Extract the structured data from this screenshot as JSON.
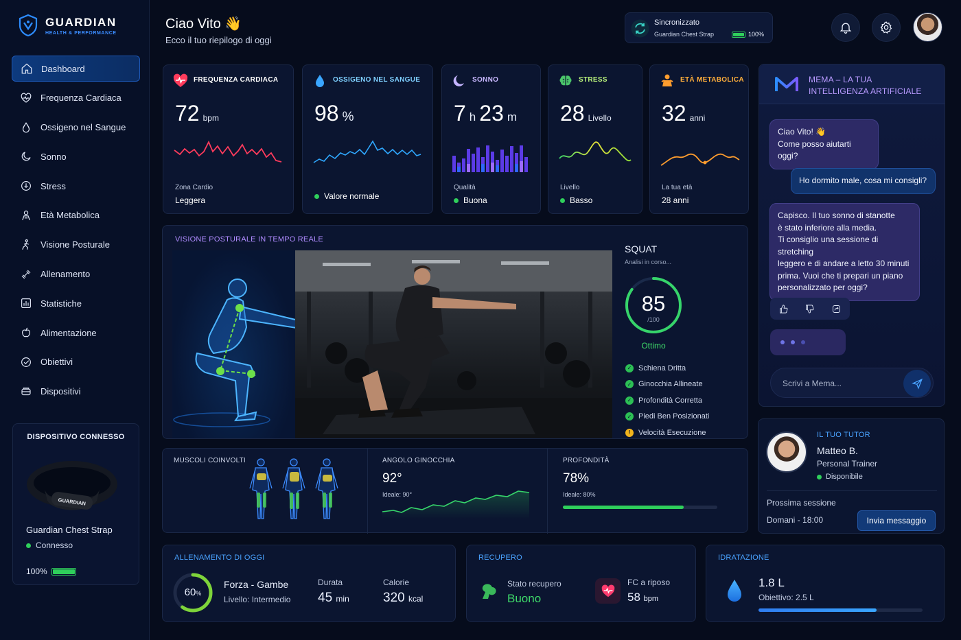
{
  "brand": {
    "name": "GUARDIAN",
    "tagline": "HEALTH & PERFORMANCE"
  },
  "sidebar": {
    "items": [
      {
        "label": "Dashboard",
        "icon": "home-icon",
        "active": true
      },
      {
        "label": "Frequenza Cardiaca",
        "icon": "heart-icon"
      },
      {
        "label": "Ossigeno nel Sangue",
        "icon": "drop-icon"
      },
      {
        "label": "Sonno",
        "icon": "moon-icon"
      },
      {
        "label": "Stress",
        "icon": "stress-icon"
      },
      {
        "label": "Età Metabolica",
        "icon": "person-icon"
      },
      {
        "label": "Visione Posturale",
        "icon": "posture-icon"
      },
      {
        "label": "Allenamento",
        "icon": "dumbbell-icon"
      },
      {
        "label": "Statistiche",
        "icon": "stats-icon"
      },
      {
        "label": "Alimentazione",
        "icon": "apple-icon"
      },
      {
        "label": "Obiettivi",
        "icon": "target-icon"
      },
      {
        "label": "Dispositivi",
        "icon": "device-icon"
      }
    ]
  },
  "device": {
    "title": "DISPOSITIVO CONNESSO",
    "strap_text": "GUARDIAN",
    "name": "Guardian Chest Strap",
    "status": "Connesso",
    "battery": "100%",
    "battery_level": 1.0
  },
  "header": {
    "greeting": "Ciao Vito 👋",
    "subtitle": "Ecco il tuo riepilogo di oggi",
    "sync": {
      "title": "Sincronizzato",
      "device": "Guardian Chest Strap",
      "battery": "100%"
    }
  },
  "metrics": [
    {
      "title": "FREQUENZA CARDIACA",
      "title_color": "#ffffff",
      "value": "72",
      "unit": "bpm",
      "label": "Zona Cardio",
      "sub": "Leggera",
      "color": "#ff3b5c"
    },
    {
      "title": "OSSIGENO NEL SANGUE",
      "title_color": "#7fd0ff",
      "value": "98",
      "unit": "%",
      "label": "",
      "sub": "Valore normale",
      "color": "#2fa8ff"
    },
    {
      "title": "SONNO",
      "title_color": "#c9b8ff",
      "value_h": "7",
      "unit_h": "h",
      "value_m": "23",
      "unit_m": "m",
      "label": "Qualità",
      "sub": "Buona",
      "color": "#6b4bff"
    },
    {
      "title": "STRESS",
      "title_color": "#b7f07a",
      "value": "28",
      "unit": "Livello",
      "label": "Livello",
      "sub": "Basso",
      "color": "#8ee03a"
    },
    {
      "title": "ETÀ METABOLICA",
      "title_color": "#ffae3b",
      "value": "32",
      "unit": "anni",
      "label": "La tua età",
      "sub": "28 anni",
      "color": "#ff9d2e"
    }
  ],
  "posture": {
    "title": "VISIONE POSTURALE IN TEMPO REALE",
    "exercise": "SQUAT",
    "analysis": "Analisi in corso...",
    "score": "85",
    "score_value": 85,
    "score_max": "/100",
    "score_label": "Ottimo",
    "checks": [
      {
        "label": "Schiena Dritta",
        "ok": true
      },
      {
        "label": "Ginocchia Allineate",
        "ok": true
      },
      {
        "label": "Profondità Corretta",
        "ok": true
      },
      {
        "label": "Piedi Ben Posizionati",
        "ok": true
      },
      {
        "label": "Velocità Esecuzione",
        "ok": false
      }
    ]
  },
  "analysis": {
    "muscles_label": "MUSCOLI COINVOLTI",
    "knee_label": "ANGOLO GINOCCHIA",
    "knee_value": "92°",
    "knee_ideal": "Ideale: 90°",
    "depth_label": "PROFONDITÀ",
    "depth_value": "78%",
    "depth_ideal": "Ideale: 80%",
    "depth_level": 0.78
  },
  "assistant": {
    "title_line1": "MEMA – LA TUA",
    "title_line2": "INTELLIGENZA ARTIFICIALE",
    "msg1_line1": "Ciao Vito! 👋",
    "msg1_line2": "Come posso aiutarti oggi?",
    "user_msg": "Ho dormito male, cosa mi consigli?",
    "reply_lines": [
      "Capisco. Il tuo sonno di stanotte",
      "è stato inferiore alla media.",
      "Ti consiglio una sessione di stretching",
      "leggero e di andare a letto 30 minuti",
      "prima. Vuoi che ti prepari un piano",
      "personalizzato per oggi?"
    ],
    "input_placeholder": "Scrivi a Mema..."
  },
  "tutor": {
    "title": "IL TUO TUTOR",
    "name": "Matteo B.",
    "role": "Personal Trainer",
    "status": "Disponibile",
    "next_label": "Prossima sessione",
    "next_value": "Domani - 18:00",
    "button": "Invia messaggio"
  },
  "workout": {
    "title": "ALLENAMENTO DI OGGI",
    "progress": "60",
    "progress_unit": "%",
    "progress_value": 0.6,
    "name": "Forza - Gambe",
    "level": "Livello: Intermedio",
    "duration_label": "Durata",
    "duration_value": "45",
    "duration_unit": "min",
    "calories_label": "Calorie",
    "calories_value": "320",
    "calories_unit": "kcal"
  },
  "recovery": {
    "title": "RECUPERO",
    "status_label": "Stato recupero",
    "status_value": "Buono",
    "hr_label": "FC a riposo",
    "hr_value": "58",
    "hr_unit": "bpm"
  },
  "hydration": {
    "title": "IDRATAZIONE",
    "value": "1.8 L",
    "goal": "Obiettivo: 2.5 L",
    "level": 0.72
  }
}
